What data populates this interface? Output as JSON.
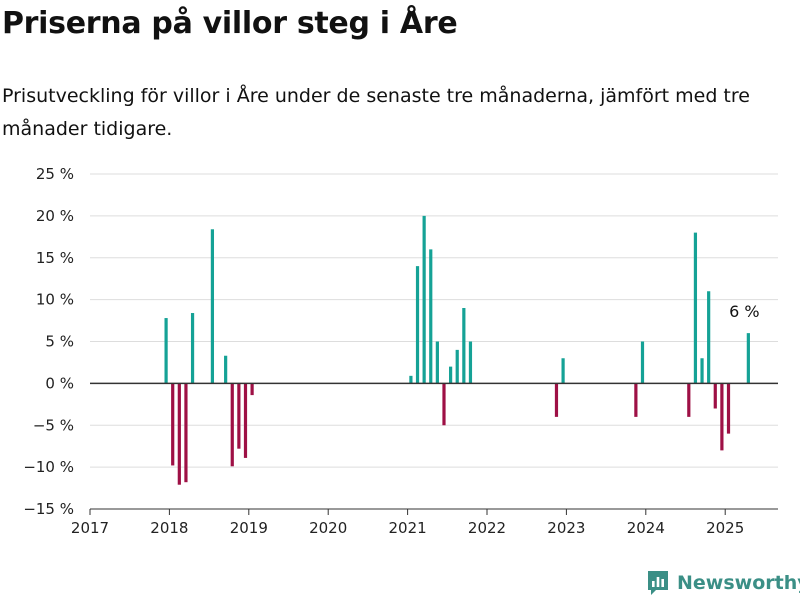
{
  "title": "Priserna på villor steg i Åre",
  "subtitle": "Prisutveckling för villor i Åre under de senaste tre månaderna, jämfört med tre månader tidigare.",
  "logo": {
    "text": "Newsworthy",
    "icon": "newsworthy-chart-icon",
    "color": "#3b8f86"
  },
  "chart_data": {
    "type": "bar",
    "x_axis": {
      "type": "time",
      "ticks": [
        "2017",
        "2018",
        "2019",
        "2020",
        "2021",
        "2022",
        "2023",
        "2024",
        "2025"
      ],
      "range": [
        "2017-01",
        "2025-12"
      ]
    },
    "y_axis": {
      "ticks": [
        "25 %",
        "20 %",
        "15 %",
        "10 %",
        "5 %",
        "0 %",
        "−5 %",
        "−10 %",
        "−15 %"
      ],
      "range": [
        -15,
        25
      ],
      "grid": true
    },
    "colors": {
      "positive": "#15a296",
      "negative": "#9e1045",
      "grid": "#dddddd",
      "baseline": "#333333"
    },
    "annotation": {
      "text": "6 %",
      "month": "2025-04"
    },
    "bars": [
      {
        "month": "2017-12",
        "value": 7.8
      },
      {
        "month": "2018-01",
        "value": -9.8
      },
      {
        "month": "2018-02",
        "value": -12.1
      },
      {
        "month": "2018-03",
        "value": -11.8
      },
      {
        "month": "2018-04",
        "value": 8.4
      },
      {
        "month": "2018-07",
        "value": 18.4
      },
      {
        "month": "2018-09",
        "value": 3.3
      },
      {
        "month": "2018-10",
        "value": -9.9
      },
      {
        "month": "2018-11",
        "value": -7.8
      },
      {
        "month": "2018-12",
        "value": -8.9
      },
      {
        "month": "2019-01",
        "value": -1.4
      },
      {
        "month": "2021-01",
        "value": 0.9
      },
      {
        "month": "2021-02",
        "value": 14
      },
      {
        "month": "2021-03",
        "value": 20
      },
      {
        "month": "2021-04",
        "value": 16
      },
      {
        "month": "2021-05",
        "value": 5
      },
      {
        "month": "2021-06",
        "value": -5
      },
      {
        "month": "2021-07",
        "value": 2
      },
      {
        "month": "2021-08",
        "value": 4
      },
      {
        "month": "2021-09",
        "value": 9
      },
      {
        "month": "2021-10",
        "value": 5
      },
      {
        "month": "2022-11",
        "value": -4
      },
      {
        "month": "2022-12",
        "value": 3
      },
      {
        "month": "2023-11",
        "value": -4
      },
      {
        "month": "2023-12",
        "value": 5
      },
      {
        "month": "2024-07",
        "value": -4
      },
      {
        "month": "2024-08",
        "value": 18
      },
      {
        "month": "2024-09",
        "value": 3
      },
      {
        "month": "2024-10",
        "value": 11
      },
      {
        "month": "2024-11",
        "value": -3
      },
      {
        "month": "2024-12",
        "value": -8
      },
      {
        "month": "2025-01",
        "value": -6
      },
      {
        "month": "2025-04",
        "value": 6
      }
    ]
  }
}
